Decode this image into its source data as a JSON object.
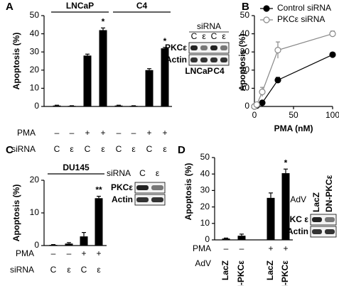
{
  "chart_data": [
    {
      "type": "bar",
      "panel": "A",
      "ylabel": "Apoptosis (%)",
      "values": [
        0.5,
        0.3,
        28,
        42,
        0.5,
        0.3,
        20,
        32
      ],
      "errors": [
        0.2,
        0.1,
        0.8,
        1.2,
        0.2,
        0.1,
        0.8,
        0.5
      ],
      "annotations": [
        null,
        null,
        null,
        "*",
        null,
        null,
        null,
        "*"
      ],
      "color": "#000000",
      "ylim": [
        0,
        50
      ],
      "yticks": [
        0,
        10,
        20,
        30,
        40,
        50
      ],
      "group_labels": [
        "LNCaP",
        "C4"
      ],
      "rows": [
        {
          "label": "PMA",
          "values": [
            "–",
            "–",
            "+",
            "+",
            "–",
            "–",
            "+",
            "+"
          ]
        },
        {
          "label": "siRNA",
          "values": [
            "C",
            "ε",
            "C",
            "ε",
            "C",
            "ε",
            "C",
            "ε"
          ]
        }
      ],
      "blot": {
        "header": "siRNA",
        "lanes": [
          "C",
          "ε",
          "C",
          "ε"
        ],
        "bands": [
          "PKCε",
          "Actin"
        ],
        "groups": [
          "LNCaP",
          "C4"
        ]
      }
    },
    {
      "type": "line",
      "panel": "B",
      "ylabel": "Apoptosis (%)",
      "xlabel": "PMA (nM)",
      "x": [
        0,
        3,
        10,
        30,
        100
      ],
      "series": [
        {
          "name": "Control siRNA",
          "color": "#000000",
          "marker_fill": "#000000",
          "values": [
            0,
            0.5,
            2,
            14.5,
            28.5
          ],
          "errors": [
            0.2,
            0.3,
            0.5,
            1.5,
            0.8
          ]
        },
        {
          "name": "PKCε siRNA",
          "color": "#888888",
          "marker_fill": "#ffffff",
          "values": [
            0,
            1,
            8,
            31,
            40
          ],
          "errors": [
            0.2,
            0.5,
            2.5,
            4.5,
            1.5
          ]
        }
      ],
      "xlim": [
        0,
        100
      ],
      "xticks": [
        0,
        50,
        100
      ],
      "ylim": [
        0,
        50
      ],
      "yticks": [
        0,
        10,
        20,
        30,
        40,
        50
      ]
    },
    {
      "type": "bar",
      "panel": "C",
      "ylabel": "Apoptosis (%)",
      "values": [
        0.2,
        0.6,
        2.8,
        14.5
      ],
      "errors": [
        0.1,
        0.3,
        1.2,
        0.6
      ],
      "annotations": [
        null,
        null,
        null,
        "**"
      ],
      "color": "#000000",
      "ylim": [
        0,
        20
      ],
      "yticks": [
        0,
        10,
        20
      ],
      "group_labels": [
        "DU145"
      ],
      "rows": [
        {
          "label": "PMA",
          "values": [
            "–",
            "–",
            "+",
            "+"
          ]
        },
        {
          "label": "siRNA",
          "values": [
            "C",
            "ε",
            "C",
            "ε"
          ]
        }
      ],
      "blot": {
        "header": "siRNA",
        "lanes": [
          "C",
          "ε"
        ],
        "bands": [
          "PKCε",
          "Actin"
        ]
      }
    },
    {
      "type": "bar",
      "panel": "D",
      "ylabel": "Apoptosis (%)",
      "values": [
        0.8,
        2.5,
        25.5,
        40.5
      ],
      "errors": [
        0.3,
        1,
        3,
        2.5
      ],
      "annotations": [
        null,
        null,
        null,
        "*"
      ],
      "color": "#000000",
      "ylim": [
        0,
        50
      ],
      "yticks": [
        0,
        10,
        20,
        30,
        40,
        50
      ],
      "rows": [
        {
          "label": "PMA",
          "values": [
            "–",
            "–",
            "+",
            "+"
          ]
        },
        {
          "label": "AdV",
          "values": [
            "LacZ",
            "DN-PKCε",
            "LacZ",
            "DN-PKCε"
          ]
        }
      ],
      "blot": {
        "header": "AdV",
        "lanes": [
          "LacZ",
          "DN-PKCε"
        ],
        "bands": [
          "PKC ε",
          "Actin"
        ]
      }
    }
  ]
}
